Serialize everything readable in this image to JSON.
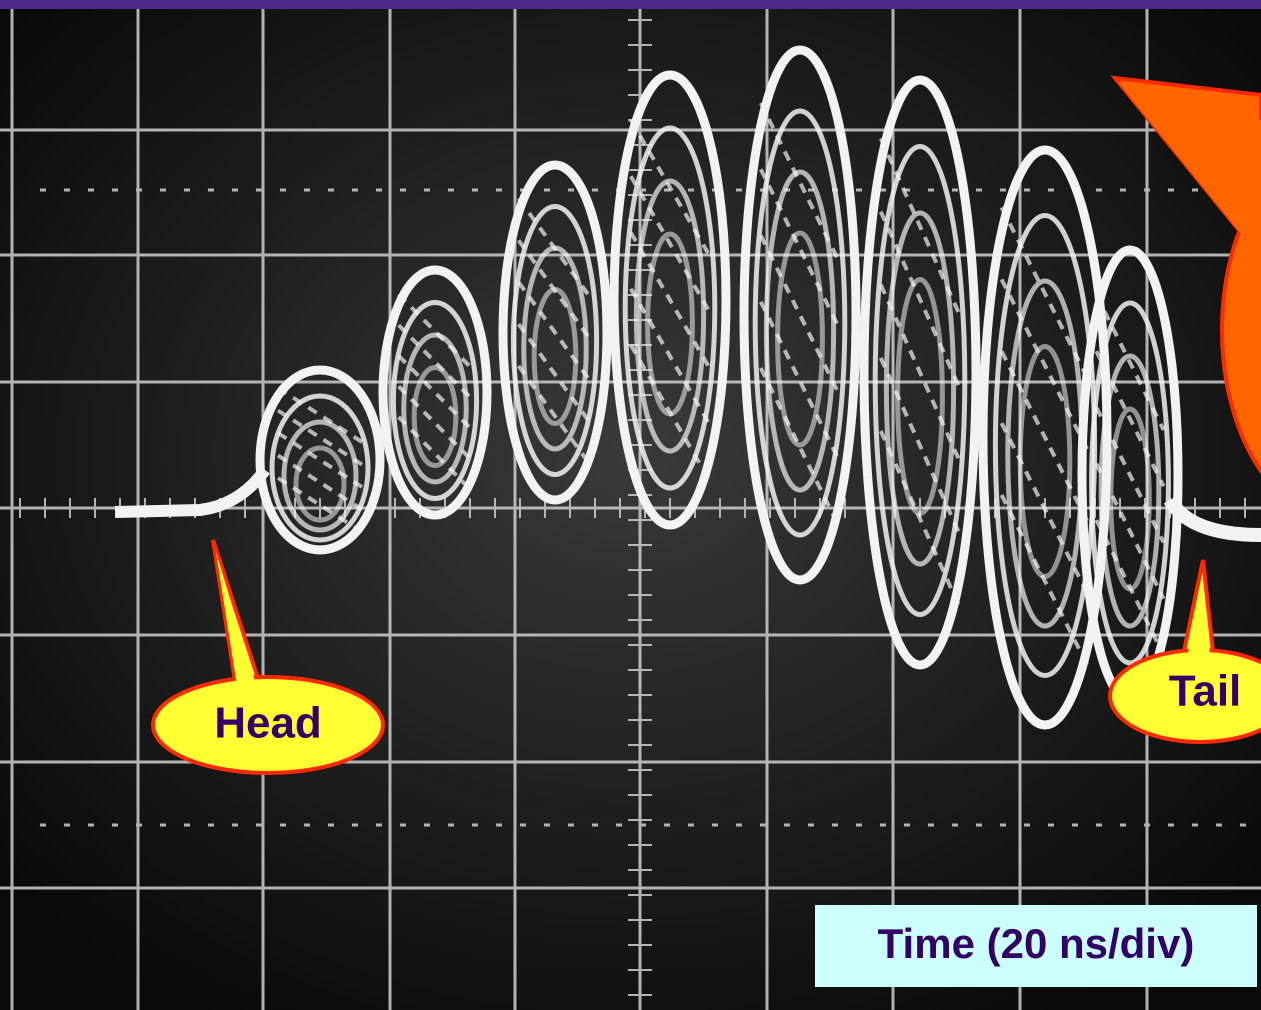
{
  "callouts": {
    "head": "Head",
    "tail": "Tail"
  },
  "axis_note": "Time (20 ns/div)"
}
